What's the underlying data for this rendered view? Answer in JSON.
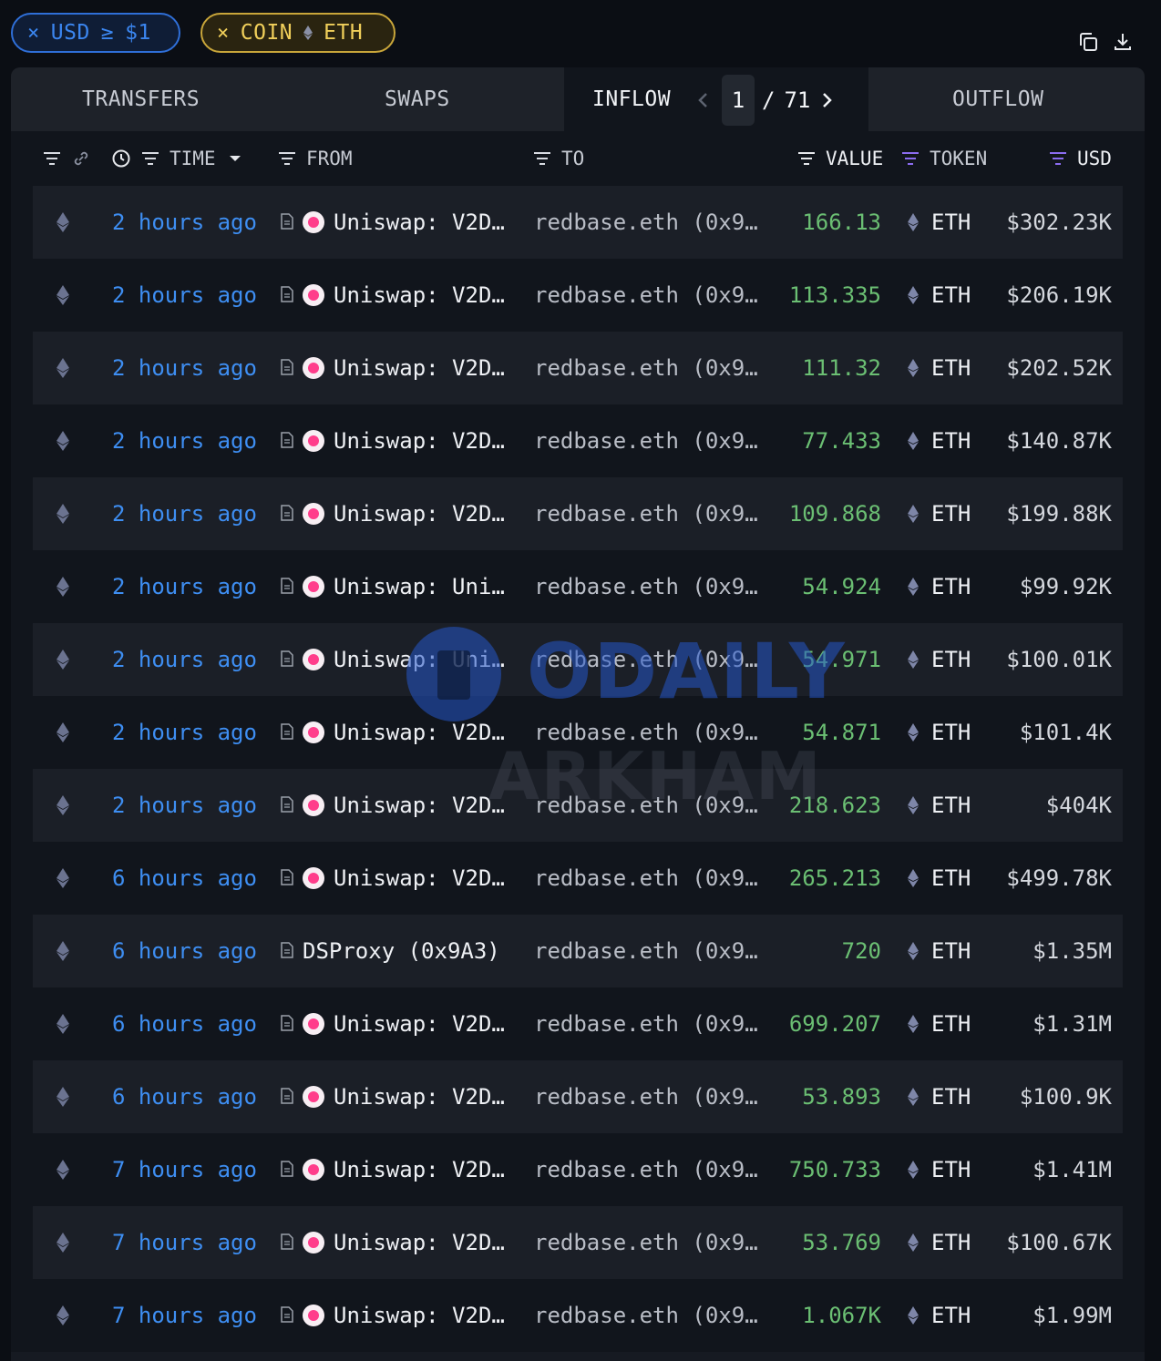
{
  "filters": {
    "usd_chip": {
      "remove": "×",
      "label": "USD",
      "operator": "≥",
      "value": "$1"
    },
    "coin_chip": {
      "remove": "×",
      "label": "COIN",
      "value": "ETH"
    }
  },
  "toolbar": {
    "copy_icon": "copy-icon",
    "download_icon": "download-icon"
  },
  "tabs": {
    "transfers": "TRANSFERS",
    "swaps": "SWAPS",
    "inflow": "INFLOW",
    "outflow": "OUTFLOW",
    "pagination": {
      "current": "1",
      "separator": "/",
      "total": "71"
    }
  },
  "columns": {
    "time": "TIME",
    "from": "FROM",
    "to": "TO",
    "value": "VALUE",
    "token": "TOKEN",
    "usd": "USD"
  },
  "colors": {
    "accent_blue": "#3e8ef2",
    "value_green": "#6bbf73",
    "chip_gold": "#f0cf5a",
    "token_purple": "#8b6cf0"
  },
  "rows": [
    {
      "time": "2 hours ago",
      "from": "Uniswap: V2D…",
      "to": "redbase.eth (0x9…",
      "value": "166.13",
      "token": "ETH",
      "usd": "$302.23K",
      "from_logo": true
    },
    {
      "time": "2 hours ago",
      "from": "Uniswap: V2D…",
      "to": "redbase.eth (0x9…",
      "value": "113.335",
      "token": "ETH",
      "usd": "$206.19K",
      "from_logo": true
    },
    {
      "time": "2 hours ago",
      "from": "Uniswap: V2D…",
      "to": "redbase.eth (0x9…",
      "value": "111.32",
      "token": "ETH",
      "usd": "$202.52K",
      "from_logo": true
    },
    {
      "time": "2 hours ago",
      "from": "Uniswap: V2D…",
      "to": "redbase.eth (0x9…",
      "value": "77.433",
      "token": "ETH",
      "usd": "$140.87K",
      "from_logo": true
    },
    {
      "time": "2 hours ago",
      "from": "Uniswap: V2D…",
      "to": "redbase.eth (0x9…",
      "value": "109.868",
      "token": "ETH",
      "usd": "$199.88K",
      "from_logo": true
    },
    {
      "time": "2 hours ago",
      "from": "Uniswap: Uni…",
      "to": "redbase.eth (0x9…",
      "value": "54.924",
      "token": "ETH",
      "usd": "$99.92K",
      "from_logo": true
    },
    {
      "time": "2 hours ago",
      "from": "Uniswap: Uni…",
      "to": "redbase.eth (0x9…",
      "value": "54.971",
      "token": "ETH",
      "usd": "$100.01K",
      "from_logo": true
    },
    {
      "time": "2 hours ago",
      "from": "Uniswap: V2D…",
      "to": "redbase.eth (0x9…",
      "value": "54.871",
      "token": "ETH",
      "usd": "$101.4K",
      "from_logo": true
    },
    {
      "time": "2 hours ago",
      "from": "Uniswap: V2D…",
      "to": "redbase.eth (0x9…",
      "value": "218.623",
      "token": "ETH",
      "usd": "$404K",
      "from_logo": true
    },
    {
      "time": "6 hours ago",
      "from": "Uniswap: V2D…",
      "to": "redbase.eth (0x9…",
      "value": "265.213",
      "token": "ETH",
      "usd": "$499.78K",
      "from_logo": true
    },
    {
      "time": "6 hours ago",
      "from": "DSProxy (0x9A3)",
      "to": "redbase.eth (0x9…",
      "value": "720",
      "token": "ETH",
      "usd": "$1.35M",
      "from_logo": false
    },
    {
      "time": "6 hours ago",
      "from": "Uniswap: V2D…",
      "to": "redbase.eth (0x9…",
      "value": "699.207",
      "token": "ETH",
      "usd": "$1.31M",
      "from_logo": true
    },
    {
      "time": "6 hours ago",
      "from": "Uniswap: V2D…",
      "to": "redbase.eth (0x9…",
      "value": "53.893",
      "token": "ETH",
      "usd": "$100.9K",
      "from_logo": true
    },
    {
      "time": "7 hours ago",
      "from": "Uniswap: V2D…",
      "to": "redbase.eth (0x9…",
      "value": "750.733",
      "token": "ETH",
      "usd": "$1.41M",
      "from_logo": true
    },
    {
      "time": "7 hours ago",
      "from": "Uniswap: V2D…",
      "to": "redbase.eth (0x9…",
      "value": "53.769",
      "token": "ETH",
      "usd": "$100.67K",
      "from_logo": true
    },
    {
      "time": "7 hours ago",
      "from": "Uniswap: V2D…",
      "to": "redbase.eth (0x9…",
      "value": "1.067K",
      "token": "ETH",
      "usd": "$1.99M",
      "from_logo": true
    }
  ],
  "watermark": {
    "brand1": "ODAILY",
    "brand2": "ARKHAM"
  }
}
